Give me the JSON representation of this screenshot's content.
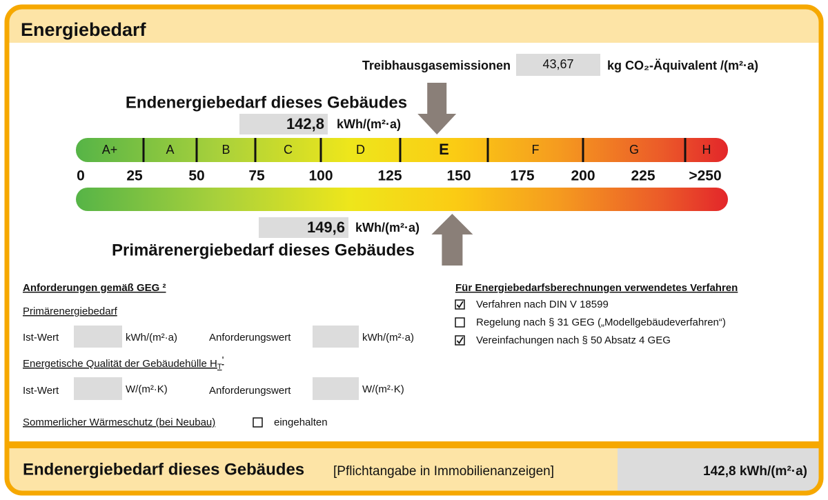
{
  "header": {
    "title": "Energiebedarf"
  },
  "emissions": {
    "label": "Treibhausgasemissionen",
    "value": "43,67",
    "unit": "kg CO₂-Äquivalent /(m²·a)"
  },
  "final_energy": {
    "heading": "Endenergiebedarf dieses Gebäudes",
    "value": {
      "value": 142.8,
      "label": "142,8"
    },
    "unit": "kWh/(m²·a)"
  },
  "primary_energy": {
    "heading": "Primärenergiebedarf dieses Gebäudes",
    "value": {
      "value": 149.6,
      "label": "149,6"
    },
    "unit": "kWh/(m²·a)"
  },
  "scale": {
    "classes": [
      "A+",
      "A",
      "B",
      "C",
      "D",
      "E",
      "F",
      "G",
      "H"
    ],
    "current_class": "E",
    "ticks": [
      0,
      25,
      50,
      75,
      100,
      125,
      150,
      175,
      200,
      225,
      {
        "value": 250,
        "label": ">250"
      }
    ]
  },
  "requirements": {
    "title": "Anforderungen gemäß GEG ²",
    "primary": {
      "label": "Primärenergiebedarf",
      "actual": "Ist-Wert",
      "actual_unit": "kWh/(m²·a)",
      "required": "Anforderungswert",
      "required_unit": "kWh/(m²·a)"
    },
    "envelope": {
      "label": "Energetische Qualität der Gebäudehülle H",
      "subscript": "T",
      "suffix": "'",
      "actual": "Ist-Wert",
      "actual_unit": "W/(m²·K)",
      "required": "Anforderungswert",
      "required_unit": "W/(m²·K)"
    },
    "summer": {
      "label": "Sommerlicher Wärmeschutz (bei Neubau)",
      "option": "eingehalten",
      "checked": false
    }
  },
  "method": {
    "title": "Für Energiebedarfsberechnungen verwendetes Verfahren",
    "options": [
      {
        "label": "Verfahren nach DIN V 18599",
        "checked": true
      },
      {
        "label": "Regelung nach § 31 GEG („Modellgebäudeverfahren“)",
        "checked": false
      },
      {
        "label": "Vereinfachungen nach § 50 Absatz 4 GEG",
        "checked": true
      }
    ]
  },
  "footer": {
    "heading": "Endenergiebedarf dieses Gebäudes",
    "note": "[Pflichtangabe in Immobilienanzeigen]",
    "value": "142,8 kWh/(m²·a)"
  }
}
